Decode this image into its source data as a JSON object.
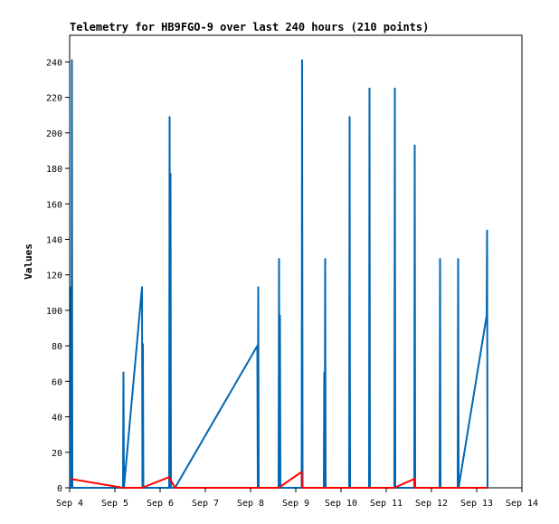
{
  "chart_data": {
    "type": "line",
    "title": "Telemetry for HB9FGO-9 over last 240 hours (210 points)",
    "xlabel": "",
    "ylabel": "Values",
    "x_ticks": [
      "Sep 4",
      "Sep 5",
      "Sep 6",
      "Sep 7",
      "Sep 8",
      "Sep 9",
      "Sep 10",
      "Sep 11",
      "Sep 12",
      "Sep 13",
      "Sep 14"
    ],
    "xlim": [
      4.0,
      14.0
    ],
    "ylim": [
      0,
      255
    ],
    "y_ticks": [
      0,
      20,
      40,
      60,
      80,
      100,
      120,
      140,
      160,
      180,
      200,
      220,
      240
    ],
    "grid": false,
    "legend": "none",
    "series": [
      {
        "color": "#0066b3",
        "points": [
          [
            4.02,
            0
          ],
          [
            4.03,
            113
          ],
          [
            4.04,
            0
          ],
          [
            4.05,
            241
          ],
          [
            4.06,
            0
          ],
          [
            5.18,
            0
          ],
          [
            5.19,
            65
          ],
          [
            5.2,
            0
          ],
          [
            5.6,
            113
          ],
          [
            5.61,
            0
          ],
          [
            5.62,
            81
          ],
          [
            5.63,
            0
          ],
          [
            6.2,
            0
          ],
          [
            6.21,
            209
          ],
          [
            6.22,
            0
          ],
          [
            6.23,
            177
          ],
          [
            6.24,
            0
          ],
          [
            6.33,
            0
          ],
          [
            8.15,
            80
          ],
          [
            8.16,
            0
          ],
          [
            8.17,
            113
          ],
          [
            8.18,
            0
          ],
          [
            8.62,
            0
          ],
          [
            8.63,
            129
          ],
          [
            8.64,
            0
          ],
          [
            8.65,
            97
          ],
          [
            8.66,
            0
          ],
          [
            9.13,
            0
          ],
          [
            9.14,
            241
          ],
          [
            9.15,
            0
          ],
          [
            9.62,
            0
          ],
          [
            9.63,
            65
          ],
          [
            9.64,
            0
          ],
          [
            9.65,
            129
          ],
          [
            9.66,
            0
          ],
          [
            10.18,
            0
          ],
          [
            10.19,
            209
          ],
          [
            10.2,
            0
          ],
          [
            10.62,
            0
          ],
          [
            10.63,
            225
          ],
          [
            10.64,
            0
          ],
          [
            11.18,
            0
          ],
          [
            11.19,
            225
          ],
          [
            11.2,
            0
          ],
          [
            11.62,
            0
          ],
          [
            11.63,
            193
          ],
          [
            11.64,
            0
          ],
          [
            12.18,
            0
          ],
          [
            12.19,
            129
          ],
          [
            12.2,
            0
          ],
          [
            12.58,
            0
          ],
          [
            12.59,
            129
          ],
          [
            12.6,
            0
          ],
          [
            13.22,
            97
          ],
          [
            13.23,
            145
          ],
          [
            13.24,
            0
          ]
        ]
      },
      {
        "color": "#ff0000",
        "points": [
          [
            4.02,
            5
          ],
          [
            5.18,
            0
          ],
          [
            5.6,
            0
          ],
          [
            6.2,
            6
          ],
          [
            6.33,
            0
          ],
          [
            8.62,
            0
          ],
          [
            9.13,
            9
          ],
          [
            9.14,
            0
          ],
          [
            11.18,
            0
          ],
          [
            11.62,
            5
          ],
          [
            11.63,
            0
          ],
          [
            13.24,
            0
          ]
        ]
      }
    ]
  }
}
